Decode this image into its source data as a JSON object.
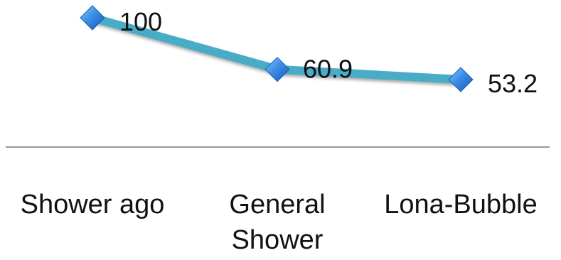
{
  "chart_data": {
    "type": "line",
    "categories": [
      [
        "Shower ago"
      ],
      [
        "General",
        "Shower"
      ],
      [
        "Lona-Bubble"
      ]
    ],
    "series": [
      {
        "values": [
          100,
          60.9,
          53.2
        ],
        "data_labels": [
          "100",
          "60.9",
          "53.2"
        ]
      }
    ],
    "title": "",
    "xlabel": "",
    "ylabel": "",
    "ylim": [
      40,
      100
    ],
    "grid": false,
    "legend": "none",
    "colors": {
      "line": "#48acc6",
      "marker": "#1f73d6",
      "marker_highlight": "#7fc2ff",
      "axis": "#777777"
    },
    "marker_icon": "diamond"
  }
}
